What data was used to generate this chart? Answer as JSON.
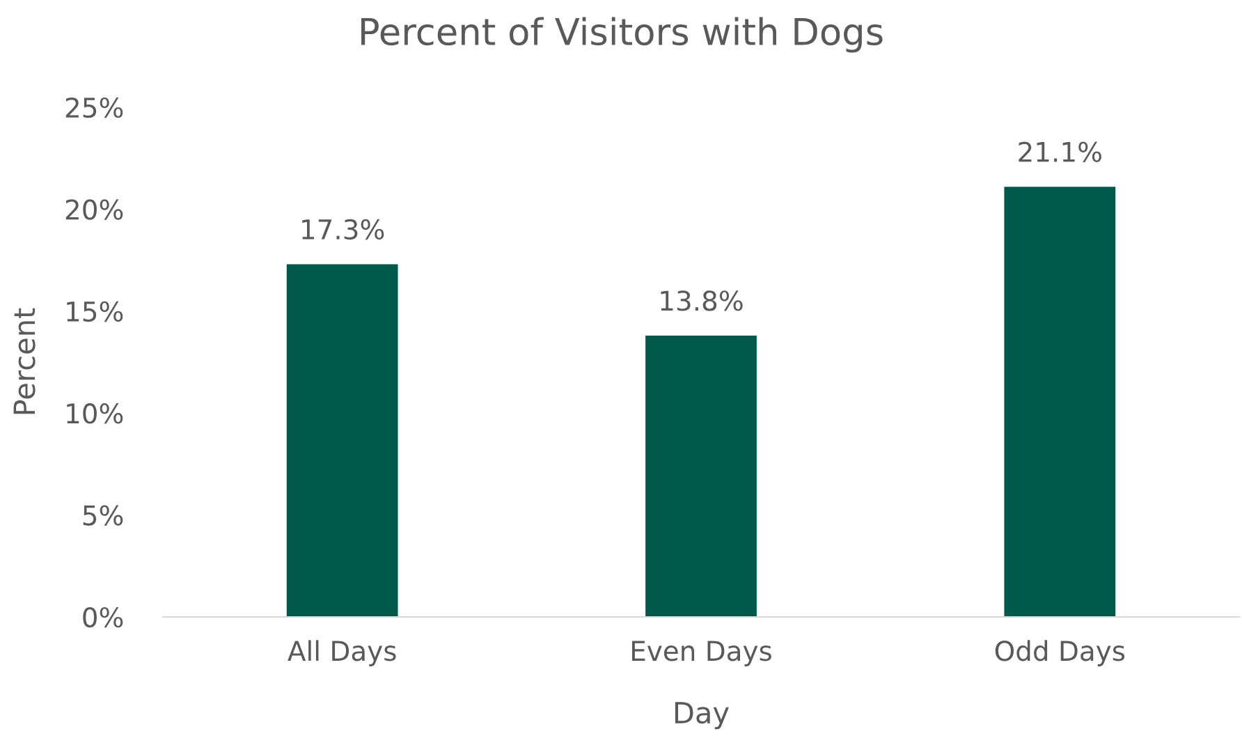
{
  "chart_data": {
    "type": "bar",
    "title": "Percent of Visitors with Dogs",
    "xlabel": "Day",
    "ylabel": "Percent",
    "categories": [
      "All Days",
      "Even Days",
      "Odd Days"
    ],
    "values": [
      17.3,
      13.8,
      21.1
    ],
    "value_labels": [
      "17.3%",
      "13.8%",
      "21.1%"
    ],
    "color": "#00594a",
    "ylim": [
      0,
      25
    ],
    "yticks": [
      {
        "value": 0,
        "label": "0%"
      },
      {
        "value": 5,
        "label": "5%"
      },
      {
        "value": 10,
        "label": "10%"
      },
      {
        "value": 15,
        "label": "15%"
      },
      {
        "value": 20,
        "label": "20%"
      },
      {
        "value": 25,
        "label": "25%"
      }
    ],
    "grid": false,
    "legend": false
  }
}
